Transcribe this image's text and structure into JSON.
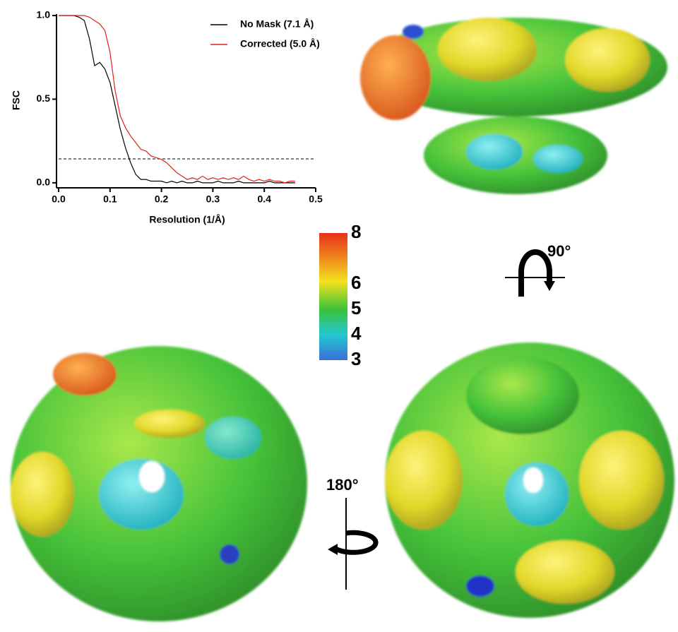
{
  "chart_data": {
    "type": "line",
    "xlabel": "Resolution (1/Å)",
    "ylabel": "FSC",
    "x": [
      0,
      0.01,
      0.02,
      0.03,
      0.04,
      0.05,
      0.06,
      0.07,
      0.08,
      0.09,
      0.1,
      0.11,
      0.12,
      0.13,
      0.14,
      0.15,
      0.16,
      0.17,
      0.18,
      0.19,
      0.2,
      0.21,
      0.22,
      0.23,
      0.24,
      0.25,
      0.26,
      0.27,
      0.28,
      0.29,
      0.3,
      0.31,
      0.32,
      0.33,
      0.34,
      0.35,
      0.36,
      0.37,
      0.38,
      0.39,
      0.4,
      0.41,
      0.42,
      0.43,
      0.44,
      0.45,
      0.46
    ],
    "series": [
      {
        "name": "No Mask (7.1 Å)",
        "color": "#000000",
        "values": [
          1,
          1,
          1,
          1,
          0.99,
          0.97,
          0.86,
          0.7,
          0.72,
          0.68,
          0.6,
          0.46,
          0.32,
          0.21,
          0.12,
          0.05,
          0.02,
          0.02,
          0.01,
          0.01,
          0.01,
          0,
          0.01,
          0,
          0.01,
          0,
          0,
          0.01,
          0,
          0,
          0,
          0.01,
          0,
          0,
          0,
          0.01,
          0,
          0,
          0,
          0,
          0,
          0.01,
          0,
          0,
          0,
          0,
          0
        ]
      },
      {
        "name": "Corrected (5.0 Å)",
        "color": "#e0201b",
        "values": [
          1,
          1,
          1,
          1,
          1,
          1,
          0.99,
          0.97,
          0.95,
          0.91,
          0.78,
          0.55,
          0.4,
          0.33,
          0.28,
          0.24,
          0.2,
          0.19,
          0.16,
          0.15,
          0.14,
          0.12,
          0.09,
          0.06,
          0.04,
          0.02,
          0.03,
          0.02,
          0.04,
          0.02,
          0.03,
          0.02,
          0.03,
          0.02,
          0.03,
          0.02,
          0.04,
          0.02,
          0.01,
          0.02,
          0.01,
          0.02,
          0.01,
          0.01,
          0,
          0.01,
          0.01
        ]
      }
    ],
    "reference_line": 0.143,
    "xlim": [
      0,
      0.5
    ],
    "ylim": [
      -0.03,
      1.0
    ],
    "xticks": [
      {
        "value": 0,
        "label": "0.0"
      },
      0.1,
      0.2,
      0.3,
      0.4,
      0.5
    ],
    "yticks": [
      {
        "value": 0,
        "label": "0.0"
      },
      0.5,
      {
        "value": 1,
        "label": "1.0"
      }
    ]
  },
  "colorbar": {
    "lim": [
      3,
      8
    ],
    "ticks": [
      3,
      4,
      5,
      6,
      8
    ]
  },
  "rotations": [
    {
      "label": "90°"
    },
    {
      "label": "180°"
    }
  ]
}
